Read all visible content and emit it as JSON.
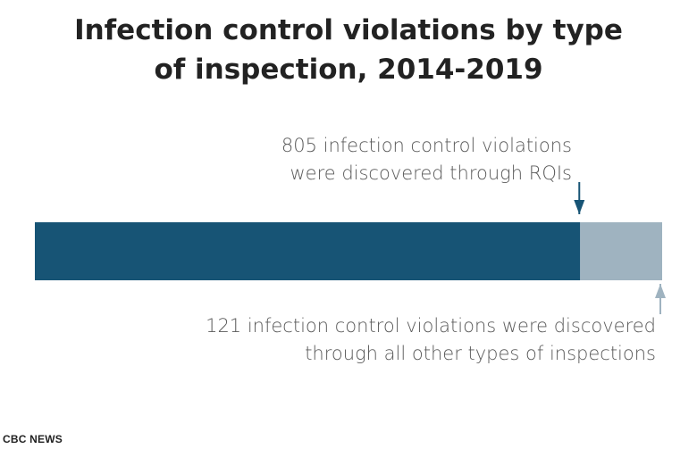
{
  "title_lines": [
    "Infection control violations by type",
    "of inspection, 2014-2019"
  ],
  "source": "CBC NEWS",
  "chart_data": {
    "type": "bar",
    "orientation": "horizontal-stacked",
    "title": "Infection control violations by type of inspection, 2014-2019",
    "segments": [
      {
        "value": 805,
        "color": "#175475"
      },
      {
        "value": 121,
        "color": "#9fb3c0"
      }
    ],
    "total": 926,
    "annotations": [
      {
        "segment": 0,
        "position": "above",
        "lines": [
          "805 infection control violations",
          "were discovered through RQIs"
        ]
      },
      {
        "segment": 1,
        "position": "below",
        "lines": [
          "121 infection control violations were discovered",
          "through all other types of inspections"
        ]
      }
    ]
  }
}
